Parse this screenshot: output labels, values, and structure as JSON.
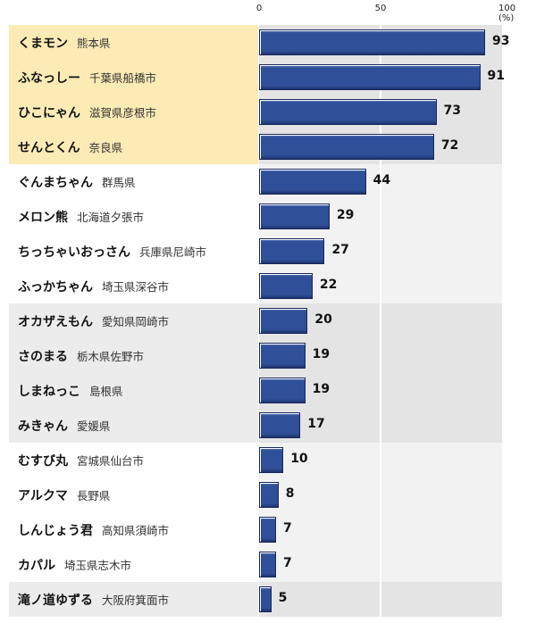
{
  "chart_data": {
    "type": "bar",
    "orientation": "horizontal",
    "xlim": [
      0,
      100
    ],
    "xticks": [
      "0",
      "50",
      "100 (%)"
    ],
    "categories": [
      {
        "name": "くまモン",
        "pref": "熊本県"
      },
      {
        "name": "ふなっしー",
        "pref": "千葉県船橋市"
      },
      {
        "name": "ひこにゃん",
        "pref": "滋賀県彦根市"
      },
      {
        "name": "せんとくん",
        "pref": "奈良県"
      },
      {
        "name": "ぐんまちゃん",
        "pref": "群馬県"
      },
      {
        "name": "メロン熊",
        "pref": "北海道夕張市"
      },
      {
        "name": "ちっちゃいおっさん",
        "pref": "兵庫県尼崎市"
      },
      {
        "name": "ふっかちゃん",
        "pref": "埼玉県深谷市"
      },
      {
        "name": "オカザえもん",
        "pref": "愛知県岡崎市"
      },
      {
        "name": "さのまる",
        "pref": "栃木県佐野市"
      },
      {
        "name": "しまねっこ",
        "pref": "島根県"
      },
      {
        "name": "みきゃん",
        "pref": "愛媛県"
      },
      {
        "name": "むすび丸",
        "pref": "宮城県仙台市"
      },
      {
        "name": "アルクマ",
        "pref": "長野県"
      },
      {
        "name": "しんじょう君",
        "pref": "高知県須崎市"
      },
      {
        "name": "カパル",
        "pref": "埼玉県志木市"
      },
      {
        "name": "滝ノ道ゆずる",
        "pref": "大阪府箕面市"
      }
    ],
    "values": [
      93,
      91,
      73,
      72,
      44,
      29,
      27,
      22,
      20,
      19,
      19,
      17,
      10,
      8,
      7,
      7,
      5
    ],
    "colors": {
      "bar": "#2f4f98",
      "highlight": "#fdebb6"
    }
  }
}
